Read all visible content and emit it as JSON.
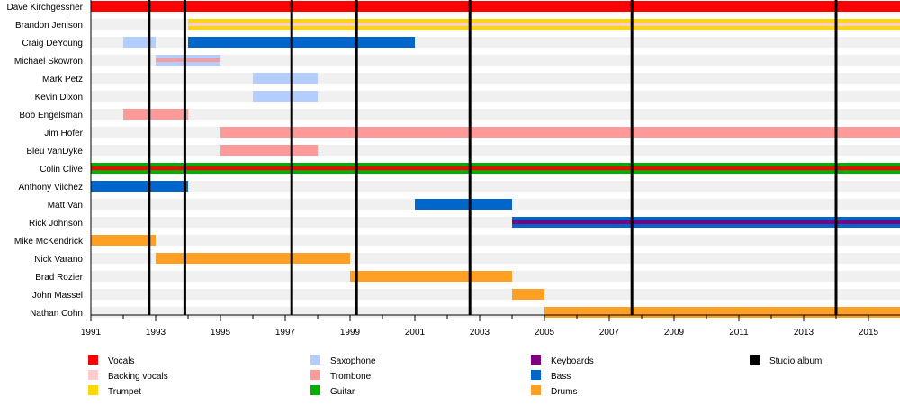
{
  "chart_data": {
    "type": "timeline",
    "title": "",
    "xlim": [
      1991,
      2016
    ],
    "x_ticks": [
      1991,
      1993,
      1995,
      1997,
      1999,
      2001,
      2003,
      2005,
      2007,
      2009,
      2011,
      2013,
      2015
    ],
    "colors": {
      "Vocals": "#ff0000",
      "Backing vocals": "#ffcccc",
      "Trumpet": "#ffd700",
      "Saxophone": "#b3cdff",
      "Trombone": "#ff9a9a",
      "Guitar": "#00b000",
      "Keyboards": "#800080",
      "Bass": "#0066cc",
      "Drums": "#ffa024",
      "Studio album": "#000000"
    },
    "legend": [
      [
        "Vocals",
        "Backing vocals",
        "Trumpet"
      ],
      [
        "Saxophone",
        "Trombone",
        "Guitar"
      ],
      [
        "Keyboards",
        "Bass",
        "Drums"
      ],
      [
        "Studio album"
      ]
    ],
    "studio_albums": [
      1992.8,
      1993.9,
      1997.2,
      1999.2,
      2002.7,
      2007.7,
      2014.0
    ],
    "members": [
      {
        "name": "Dave Kirchgessner",
        "spans": [
          {
            "role": "Vocals",
            "start": 1991,
            "end": 2016
          }
        ]
      },
      {
        "name": "Brandon Jenison",
        "spans": [
          {
            "role": "Trumpet",
            "start": 1994,
            "end": 2016,
            "second": "Backing vocals"
          }
        ]
      },
      {
        "name": "Craig DeYoung",
        "spans": [
          {
            "role": "Saxophone",
            "start": 1992,
            "end": 1993
          },
          {
            "role": "Bass",
            "start": 1994,
            "end": 2001
          }
        ]
      },
      {
        "name": "Michael Skowron",
        "spans": [
          {
            "role": "Saxophone",
            "start": 1993,
            "end": 1995,
            "second": "Trombone"
          }
        ]
      },
      {
        "name": "Mark Petz",
        "spans": [
          {
            "role": "Saxophone",
            "start": 1996,
            "end": 1998
          }
        ]
      },
      {
        "name": "Kevin Dixon",
        "spans": [
          {
            "role": "Saxophone",
            "start": 1996,
            "end": 1998
          }
        ]
      },
      {
        "name": "Bob Engelsman",
        "spans": [
          {
            "role": "Trombone",
            "start": 1992,
            "end": 1994
          }
        ]
      },
      {
        "name": "Jim Hofer",
        "spans": [
          {
            "role": "Trombone",
            "start": 1995,
            "end": 2016
          }
        ]
      },
      {
        "name": "Bleu VanDyke",
        "spans": [
          {
            "role": "Trombone",
            "start": 1995,
            "end": 1998
          }
        ]
      },
      {
        "name": "Colin Clive",
        "spans": [
          {
            "role": "Guitar",
            "start": 1991,
            "end": 2016,
            "second": "Vocals"
          }
        ]
      },
      {
        "name": "Anthony Vilchez",
        "spans": [
          {
            "role": "Bass",
            "start": 1991,
            "end": 1994
          }
        ]
      },
      {
        "name": "Matt Van",
        "spans": [
          {
            "role": "Bass",
            "start": 2001,
            "end": 2004
          }
        ]
      },
      {
        "name": "Rick Johnson",
        "spans": [
          {
            "role": "Bass",
            "start": 2004,
            "end": 2016,
            "second": "Keyboards"
          }
        ]
      },
      {
        "name": "Mike McKendrick",
        "spans": [
          {
            "role": "Drums",
            "start": 1991,
            "end": 1993
          }
        ]
      },
      {
        "name": "Nick Varano",
        "spans": [
          {
            "role": "Drums",
            "start": 1993,
            "end": 1999
          }
        ]
      },
      {
        "name": "Brad Rozier",
        "spans": [
          {
            "role": "Drums",
            "start": 1999,
            "end": 2004
          }
        ]
      },
      {
        "name": "John Massel",
        "spans": [
          {
            "role": "Drums",
            "start": 2004,
            "end": 2005
          }
        ]
      },
      {
        "name": "Nathan Cohn",
        "spans": [
          {
            "role": "Drums",
            "start": 2005,
            "end": 2016
          }
        ]
      }
    ]
  }
}
